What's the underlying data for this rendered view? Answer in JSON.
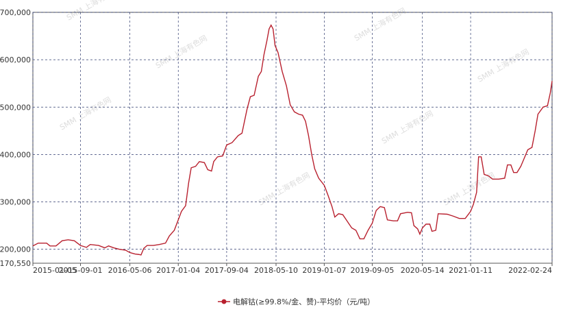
{
  "chart_data": {
    "type": "line",
    "legend_position": "bottom",
    "watermark": "SMM 上海有色网",
    "grid": true,
    "ylim": [
      170550,
      700000
    ],
    "yticks": [
      {
        "value": 170550,
        "label": "170,550"
      },
      {
        "value": 200000,
        "label": "200,000"
      },
      {
        "value": 300000,
        "label": "300,000"
      },
      {
        "value": 400000,
        "label": "400,000"
      },
      {
        "value": 500000,
        "label": "500,000"
      },
      {
        "value": 600000,
        "label": "600,000"
      },
      {
        "value": 700000,
        "label": "700,000"
      }
    ],
    "xlim": [
      "2015-01-05",
      "2022-02-24"
    ],
    "xticks": [
      "2015-01-05",
      "2015-09-01",
      "2016-05-06",
      "2017-01-04",
      "2017-09-04",
      "2018-05-10",
      "2019-01-07",
      "2019-09-05",
      "2020-05-14",
      "2021-01-11",
      "2022-02-24"
    ],
    "x": [
      "2015-01-05",
      "2015-02-01",
      "2015-03-15",
      "2015-04-01",
      "2015-05-01",
      "2015-06-01",
      "2015-07-01",
      "2015-08-01",
      "2015-09-01",
      "2015-10-01",
      "2015-10-20",
      "2015-12-01",
      "2016-01-01",
      "2016-01-20",
      "2016-02-15",
      "2016-03-15",
      "2016-04-15",
      "2016-05-06",
      "2016-06-01",
      "2016-06-20",
      "2016-07-01",
      "2016-07-15",
      "2016-08-01",
      "2016-09-01",
      "2016-10-01",
      "2016-11-01",
      "2016-11-20",
      "2016-12-15",
      "2017-01-04",
      "2017-01-20",
      "2017-02-10",
      "2017-02-25",
      "2017-03-10",
      "2017-04-01",
      "2017-04-20",
      "2017-05-15",
      "2017-06-01",
      "2017-06-20",
      "2017-07-01",
      "2017-07-20",
      "2017-08-15",
      "2017-09-04",
      "2017-10-01",
      "2017-11-01",
      "2017-11-20",
      "2017-12-15",
      "2018-01-01",
      "2018-01-20",
      "2018-02-10",
      "2018-02-25",
      "2018-03-10",
      "2018-03-25",
      "2018-04-05",
      "2018-04-15",
      "2018-04-25",
      "2018-05-05",
      "2018-05-20",
      "2018-06-10",
      "2018-07-01",
      "2018-07-20",
      "2018-08-10",
      "2018-09-01",
      "2018-09-20",
      "2018-10-05",
      "2018-10-20",
      "2018-11-05",
      "2018-11-20",
      "2018-12-10",
      "2019-01-07",
      "2019-01-25",
      "2019-02-15",
      "2019-03-01",
      "2019-03-20",
      "2019-04-10",
      "2019-05-01",
      "2019-05-25",
      "2019-06-15",
      "2019-07-05",
      "2019-07-25",
      "2019-08-15",
      "2019-09-05",
      "2019-09-25",
      "2019-10-15",
      "2019-11-05",
      "2019-11-20",
      "2019-12-20",
      "2020-01-10",
      "2020-01-25",
      "2020-03-01",
      "2020-03-20",
      "2020-04-01",
      "2020-04-20",
      "2020-05-01",
      "2020-05-14",
      "2020-06-01",
      "2020-06-20",
      "2020-07-01",
      "2020-07-20",
      "2020-08-01",
      "2020-09-15",
      "2020-10-15",
      "2020-11-15",
      "2020-12-15",
      "2021-01-11",
      "2021-01-25",
      "2021-02-10",
      "2021-02-20",
      "2021-03-05",
      "2021-03-20",
      "2021-04-10",
      "2021-05-01",
      "2021-06-01",
      "2021-07-01",
      "2021-07-15",
      "2021-08-01",
      "2021-08-15",
      "2021-09-01",
      "2021-09-20",
      "2021-10-10",
      "2021-10-25",
      "2021-11-15",
      "2021-12-01",
      "2021-12-15",
      "2022-01-10",
      "2022-02-01",
      "2022-02-15",
      "2022-02-24"
    ],
    "series": [
      {
        "name": "电解钴(≥99.8%/金、赞)-平均价（元/吨）",
        "color": "#b8202e",
        "values": [
          207000,
          213000,
          213000,
          207000,
          207000,
          218000,
          220000,
          218000,
          208000,
          204000,
          210000,
          208000,
          203000,
          207000,
          203000,
          200000,
          198000,
          193000,
          190000,
          189000,
          188000,
          202000,
          208000,
          208000,
          210000,
          213000,
          228000,
          240000,
          262000,
          280000,
          292000,
          340000,
          372000,
          375000,
          385000,
          383000,
          368000,
          365000,
          385000,
          395000,
          397000,
          420000,
          425000,
          440000,
          445000,
          495000,
          522000,
          525000,
          565000,
          575000,
          610000,
          640000,
          665000,
          673000,
          665000,
          630000,
          615000,
          575000,
          545000,
          505000,
          490000,
          485000,
          483000,
          470000,
          440000,
          400000,
          370000,
          350000,
          335000,
          315000,
          290000,
          268000,
          275000,
          273000,
          260000,
          245000,
          240000,
          222000,
          222000,
          240000,
          255000,
          282000,
          290000,
          288000,
          262000,
          260000,
          260000,
          275000,
          278000,
          277000,
          250000,
          243000,
          232000,
          245000,
          253000,
          253000,
          238000,
          240000,
          275000,
          274000,
          270000,
          265000,
          265000,
          280000,
          295000,
          320000,
          395000,
          395000,
          358000,
          355000,
          348000,
          348000,
          350000,
          378000,
          378000,
          362000,
          362000,
          375000,
          395000,
          410000,
          415000,
          450000,
          485000,
          500000,
          503000,
          530000,
          555000
        ]
      }
    ]
  }
}
